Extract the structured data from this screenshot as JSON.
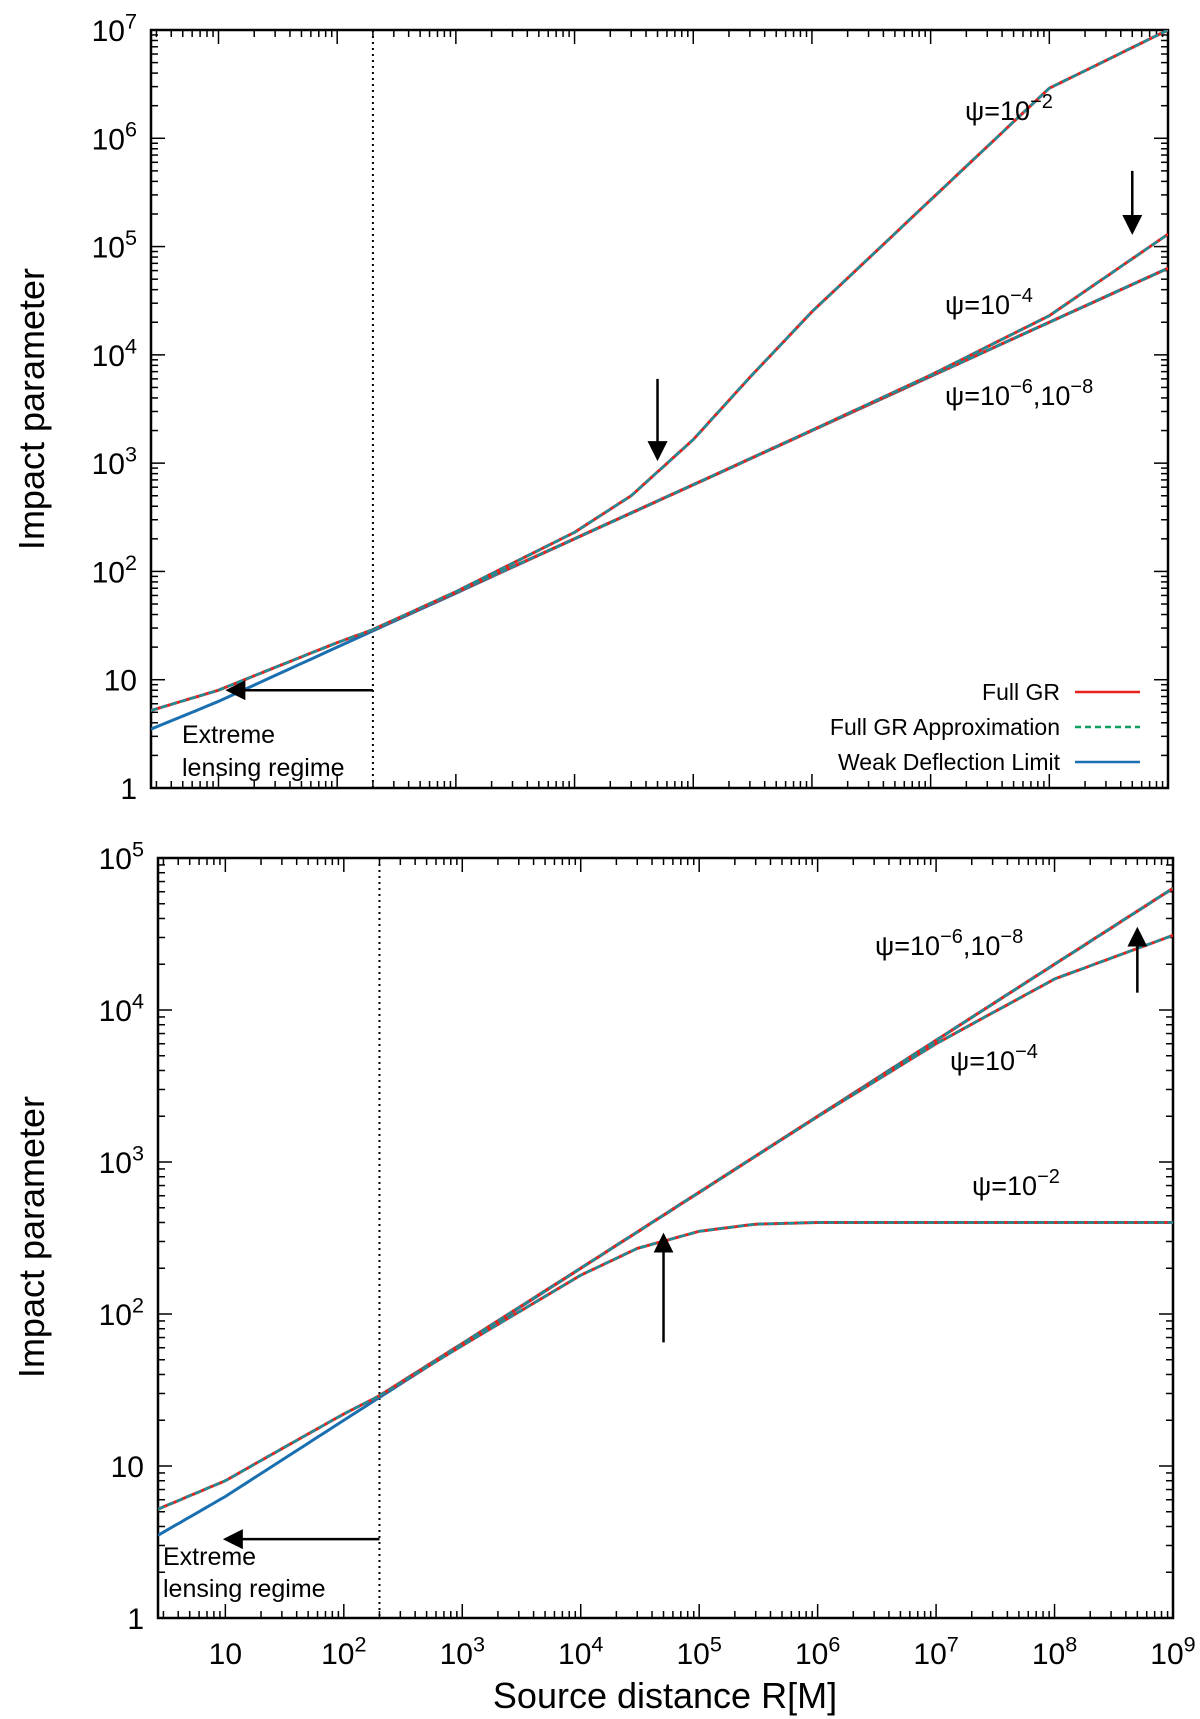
{
  "figure": {
    "x_axis_label": "Source distance R[M]",
    "x_tick_labels": [
      {
        "value": 10,
        "base": "10",
        "exp": ""
      },
      {
        "value": 100,
        "base": "10",
        "exp": "2"
      },
      {
        "value": 1000,
        "base": "10",
        "exp": "3"
      },
      {
        "value": 10000,
        "base": "10",
        "exp": "4"
      },
      {
        "value": 100000,
        "base": "10",
        "exp": "5"
      },
      {
        "value": 1000000,
        "base": "10",
        "exp": "6"
      },
      {
        "value": 10000000,
        "base": "10",
        "exp": "7"
      },
      {
        "value": 100000000,
        "base": "10",
        "exp": "8"
      },
      {
        "value": 1000000000,
        "base": "10",
        "exp": "9"
      }
    ],
    "colors": {
      "full_gr": "#e8221b",
      "full_gr_approx": "#10a060",
      "weak_deflection": "#1a6fb0",
      "curve_overlap": "#17909a"
    }
  },
  "chart_data": [
    {
      "type": "line",
      "panel": "top",
      "xlabel": "Source distance R[M]",
      "ylabel": "Impact parameter",
      "xscale": "log",
      "yscale": "log",
      "xlim": [
        2.7,
        1000000000
      ],
      "ylim": [
        1,
        10000000
      ],
      "y_tick_labels": [
        {
          "value": 1,
          "base": "1",
          "exp": ""
        },
        {
          "value": 10,
          "base": "10",
          "exp": ""
        },
        {
          "value": 100,
          "base": "10",
          "exp": "2"
        },
        {
          "value": 1000,
          "base": "10",
          "exp": "3"
        },
        {
          "value": 10000,
          "base": "10",
          "exp": "4"
        },
        {
          "value": 100000,
          "base": "10",
          "exp": "5"
        },
        {
          "value": 1000000,
          "base": "10",
          "exp": "6"
        },
        {
          "value": 10000000,
          "base": "10",
          "exp": "7"
        }
      ],
      "legend": {
        "position": "bottom-right",
        "entries": [
          {
            "label": "Full GR",
            "style": "solid",
            "color": "#e8221b"
          },
          {
            "label": "Full GR Approximation",
            "style": "dashed",
            "color": "#10a060"
          },
          {
            "label": "Weak Deflection Limit",
            "style": "solid",
            "color": "#1a6fb0"
          }
        ]
      },
      "vertical_line_x": 200,
      "region_label": {
        "line1": "Extreme",
        "line2": "lensing regime"
      },
      "series": [
        {
          "name": "Weak Deflection Limit",
          "role": "weak",
          "x": [
            2.7,
            10,
            100,
            1000,
            10000,
            100000,
            1000000,
            10000000,
            100000000,
            1000000000
          ],
          "y": [
            3.5,
            6.3,
            20,
            63,
            200,
            632,
            2000,
            6320,
            20000,
            63200
          ]
        },
        {
          "name": "psi = 1e-6, 1e-8",
          "role": "full",
          "x": [
            2.7,
            10,
            30,
            100,
            200,
            1000,
            10000,
            100000,
            1000000,
            10000000,
            100000000,
            1000000000
          ],
          "y": [
            5.2,
            8,
            13,
            22,
            29,
            64,
            200,
            632,
            2000,
            6320,
            20000,
            63200
          ]
        },
        {
          "name": "psi = 1e-4",
          "role": "full",
          "x": [
            200,
            1000,
            10000,
            100000,
            1000000,
            10000000,
            100000000,
            1000000000
          ],
          "y": [
            29,
            64,
            200,
            632,
            2010,
            6500,
            23000,
            130000
          ]
        },
        {
          "name": "psi = 1e-2",
          "role": "full",
          "x": [
            200,
            1000,
            10000,
            30000,
            100000,
            300000,
            1000000,
            10000000,
            100000000,
            1000000000
          ],
          "y": [
            29,
            65,
            230,
            500,
            1650,
            6200,
            25000,
            270000,
            2900000,
            10000000
          ]
        }
      ],
      "annotations": [
        {
          "key": "p2",
          "x": 100000000,
          "y": 1500000,
          "prefix": "ψ=10",
          "exp": "−2",
          "mid": "",
          "exp2": ""
        },
        {
          "key": "p4",
          "x": 30000000,
          "y": 18000,
          "prefix": "ψ=10",
          "exp": "−4",
          "mid": "",
          "exp2": ""
        },
        {
          "key": "p68",
          "x": 30000000,
          "y": 1300,
          "prefix": "ψ=10",
          "exp": "−6",
          "mid": ",10",
          "exp2": "−8"
        }
      ],
      "arrows": [
        {
          "x1": 50000,
          "y1": 6000,
          "x2": 50000,
          "y2": 1100
        },
        {
          "x1": 500000000,
          "y1": 500000,
          "x2": 500000000,
          "y2": 135000
        },
        {
          "x1": 200,
          "y1": 8,
          "x2": 12,
          "y2": 8
        }
      ]
    },
    {
      "type": "line",
      "panel": "bottom",
      "xlabel": "Source distance R[M]",
      "ylabel": "Impact parameter",
      "xscale": "log",
      "yscale": "log",
      "xlim": [
        2.7,
        1000000000
      ],
      "ylim": [
        1,
        100000
      ],
      "y_tick_labels": [
        {
          "value": 1,
          "base": "1",
          "exp": ""
        },
        {
          "value": 10,
          "base": "10",
          "exp": ""
        },
        {
          "value": 100,
          "base": "10",
          "exp": "2"
        },
        {
          "value": 1000,
          "base": "10",
          "exp": "3"
        },
        {
          "value": 10000,
          "base": "10",
          "exp": "4"
        },
        {
          "value": 100000,
          "base": "10",
          "exp": "5"
        }
      ],
      "vertical_line_x": 200,
      "region_label": {
        "line1": "Extreme",
        "line2": "lensing regime"
      },
      "series": [
        {
          "name": "Weak Deflection Limit",
          "role": "weak",
          "x": [
            2.7,
            10,
            100,
            1000,
            10000,
            100000,
            1000000,
            10000000,
            100000000,
            1000000000
          ],
          "y": [
            3.5,
            6.3,
            20,
            63,
            200,
            632,
            2000,
            6320,
            20000,
            63200
          ]
        },
        {
          "name": "psi = 1e-6, 1e-8",
          "role": "full",
          "x": [
            2.7,
            10,
            30,
            100,
            200,
            1000,
            10000,
            100000,
            1000000,
            10000000,
            100000000,
            1000000000
          ],
          "y": [
            5.2,
            8,
            13,
            22,
            29,
            64,
            200,
            632,
            2000,
            6320,
            20000,
            63200
          ]
        },
        {
          "name": "psi = 1e-4",
          "role": "full",
          "x": [
            200,
            1000,
            10000,
            100000,
            1000000,
            10000000,
            100000000,
            1000000000
          ],
          "y": [
            29,
            64,
            200,
            632,
            1990,
            6000,
            16000,
            31000
          ]
        },
        {
          "name": "psi = 1e-2",
          "role": "full",
          "x": [
            200,
            1000,
            10000,
            30000,
            100000,
            300000,
            1000000,
            10000000,
            100000000,
            1000000000
          ],
          "y": [
            29,
            62,
            180,
            270,
            350,
            390,
            400,
            400,
            400,
            400
          ]
        }
      ],
      "annotations": [
        {
          "key": "p68",
          "x": 3000000,
          "y": 50000,
          "prefix": "ψ=10",
          "exp": "−6",
          "mid": ",10",
          "exp2": "−8"
        },
        {
          "key": "p4",
          "x": 20000000,
          "y": 4000,
          "prefix": "ψ=10",
          "exp": "−4",
          "mid": "",
          "exp2": ""
        },
        {
          "key": "p2",
          "x": 20000000,
          "y": 600,
          "prefix": "ψ=10",
          "exp": "−2",
          "mid": "",
          "exp2": ""
        }
      ],
      "arrows": [
        {
          "x1": 50000,
          "y1": 65,
          "x2": 50000,
          "y2": 330
        },
        {
          "x1": 500000000,
          "y1": 13000,
          "x2": 500000000,
          "y2": 34000
        },
        {
          "x1": 200,
          "y1": 3.3,
          "x2": 10,
          "y2": 3.3
        }
      ]
    }
  ]
}
